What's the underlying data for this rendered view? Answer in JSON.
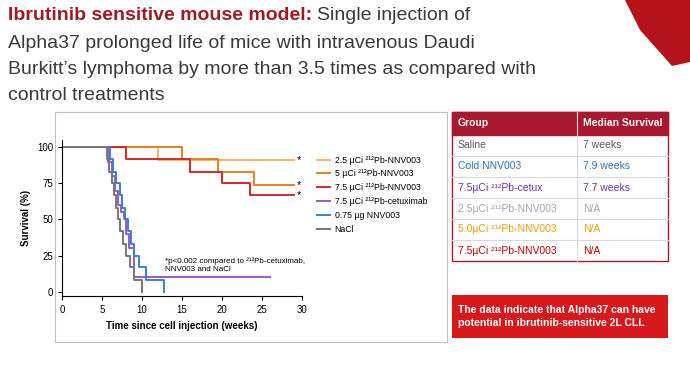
{
  "header": {
    "title_bold": "Ibrutinib sensitive mouse model:",
    "title_lines": [
      "Single injection of",
      "Alpha37 prolonged life of mice with intravenous Daudi",
      "Burkitt’s lymphoma by more than 3.5 times as compared with",
      "control treatments"
    ]
  },
  "chart_data": {
    "type": "line",
    "line_style": "steps",
    "x_label": "Time since cell injection (weeks)",
    "y_label": "Survival (%)",
    "xlim": [
      0,
      30
    ],
    "ylim": [
      -3,
      105
    ],
    "xticks": [
      0,
      5,
      10,
      15,
      20,
      25,
      30
    ],
    "yticks": [
      0,
      25,
      50,
      75,
      100
    ],
    "legend": "right",
    "series": [
      {
        "name": "2.5 µCi ²¹²Pb-NNV003",
        "color": "#f7b26b",
        "x": [
          0,
          12.0,
          29.0
        ],
        "values": [
          100,
          91,
          91
        ]
      },
      {
        "name": "5 µCi ²¹²Pb-NNV003",
        "color": "#f07d1c",
        "x": [
          0,
          15.0,
          19.5,
          24.0,
          29.0
        ],
        "values": [
          100,
          92,
          83,
          74,
          74
        ]
      },
      {
        "name": "7.5 µCi ²¹²Pb-NNV003",
        "color": "#d62828",
        "x": [
          0,
          8.0,
          16.0,
          20.0,
          23.5,
          29.0
        ],
        "values": [
          100,
          92,
          83,
          75,
          67,
          67
        ]
      },
      {
        "name": "7.5 µCi ²¹²Pb-cetuximab",
        "color": "#9b59d0",
        "x": [
          0,
          5.8,
          6.2,
          6.6,
          7.0,
          7.4,
          7.7,
          8.0,
          8.4,
          9.0,
          26.0
        ],
        "values": [
          100,
          90,
          80,
          70,
          60,
          55,
          50,
          40,
          30,
          10,
          10
        ]
      },
      {
        "name": "0.75 µg NNV003",
        "color": "#3a7fd5",
        "x": [
          0,
          6.0,
          6.4,
          6.8,
          7.2,
          7.5,
          7.9,
          8.2,
          8.6,
          9.0,
          9.6,
          10.5,
          12.8
        ],
        "values": [
          100,
          92,
          83,
          75,
          67,
          58,
          50,
          42,
          33,
          25,
          17,
          8,
          0
        ]
      },
      {
        "name": "NaCl",
        "color": "#777777",
        "x": [
          0,
          5.6,
          5.9,
          6.2,
          6.5,
          6.8,
          7.0,
          7.3,
          7.6,
          8.0,
          8.5,
          9.0,
          10.0
        ],
        "values": [
          100,
          92,
          83,
          75,
          67,
          58,
          50,
          42,
          33,
          25,
          17,
          8,
          0
        ]
      }
    ],
    "annotations": [
      {
        "text": "*p<0.002 compared to ²¹²Pb-cetuximab,\nNNV003 and NaCl",
        "x": 12.9,
        "y": 24
      },
      {
        "text": "*",
        "x": 29.3,
        "y": 91
      },
      {
        "text": "*",
        "x": 29.3,
        "y": 74
      },
      {
        "text": "*",
        "x": 29.3,
        "y": 67
      }
    ]
  },
  "table": {
    "header": [
      "Group",
      "Median Survival"
    ],
    "rows": [
      [
        "Saline",
        "7 weeks"
      ],
      [
        "Cold NNV003",
        "7.9 weeks"
      ],
      [
        "7.5µCi ²¹²Pb-cetux",
        "7.7 weeks"
      ],
      [
        "2.5µCi ²¹²Pb-NNV003",
        "N/A"
      ],
      [
        "5.0µCi ²¹²Pb-NNV003",
        "N/A"
      ],
      [
        "7.5µCi ²¹²Pb-NNV003",
        "N/A"
      ]
    ],
    "row_colors": [
      "#595959",
      "#2e75b6",
      "#7030a0",
      "#a6a6a6",
      "#f0a000",
      "#c00000"
    ]
  },
  "callout": {
    "text": "The data indicate that Alpha37 can have\npotential in ibrutinib-sensitive 2L CLL"
  }
}
